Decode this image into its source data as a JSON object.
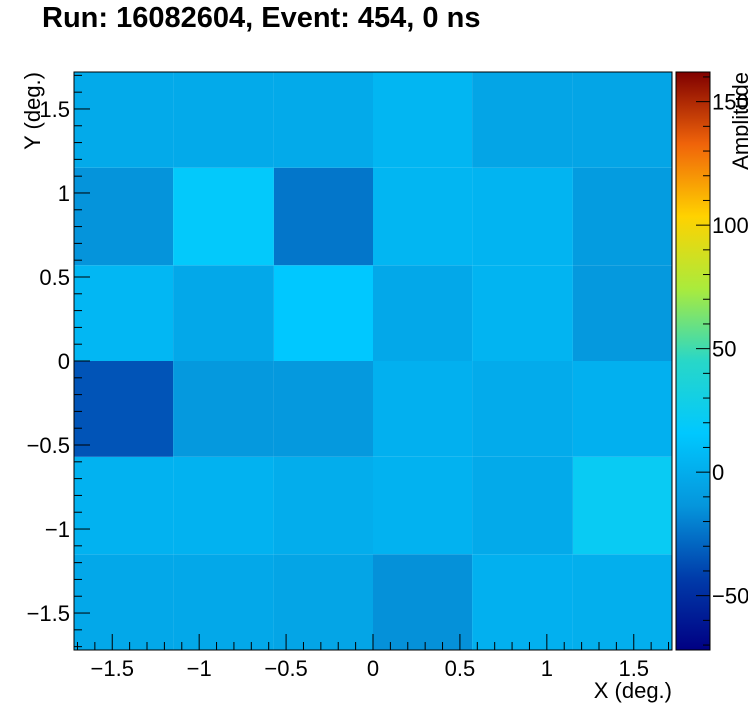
{
  "chart_data": {
    "type": "heatmap",
    "title": "Run: 16082604, Event: 454, 0 ns",
    "xlabel": "X (deg.)",
    "ylabel": "Y (deg.)",
    "zlabel": "Amplitude",
    "xlim": [
      -1.72,
      1.72
    ],
    "ylim": [
      -1.72,
      1.72
    ],
    "zlim": [
      -72,
      162
    ],
    "x_edges": [
      -1.72,
      -1.15,
      -0.57,
      0.0,
      0.57,
      1.15,
      1.72
    ],
    "y_edges": [
      -1.72,
      -1.15,
      -0.57,
      0.0,
      0.57,
      1.15,
      1.72
    ],
    "x_ticks": [
      -1.5,
      -1,
      -0.5,
      0,
      0.5,
      1,
      1.5
    ],
    "x_tick_labels": [
      "−1.5",
      "−1",
      "−0.5",
      "0",
      "0.5",
      "1",
      "1.5"
    ],
    "y_ticks": [
      -1.5,
      -1,
      -0.5,
      0,
      0.5,
      1,
      1.5
    ],
    "y_tick_labels": [
      "−1.5",
      "−1",
      "−0.5",
      "0",
      "0.5",
      "1",
      "1.5"
    ],
    "z_ticks": [
      -50,
      0,
      50,
      100,
      150
    ],
    "z_tick_labels": [
      "−50",
      "0",
      "50",
      "100",
      "150"
    ],
    "values": [
      [
        -3,
        -3,
        -5,
        -15,
        2,
        1
      ],
      [
        3,
        3,
        0,
        3,
        -2,
        22
      ],
      [
        -35,
        -12,
        -12,
        2,
        -1,
        2
      ],
      [
        6,
        -3,
        16,
        -3,
        4,
        -12
      ],
      [
        -14,
        18,
        -24,
        5,
        4,
        -10
      ],
      [
        -2,
        -2,
        -2,
        5,
        -5,
        -5
      ]
    ],
    "grid": false,
    "colormap": "jet"
  }
}
